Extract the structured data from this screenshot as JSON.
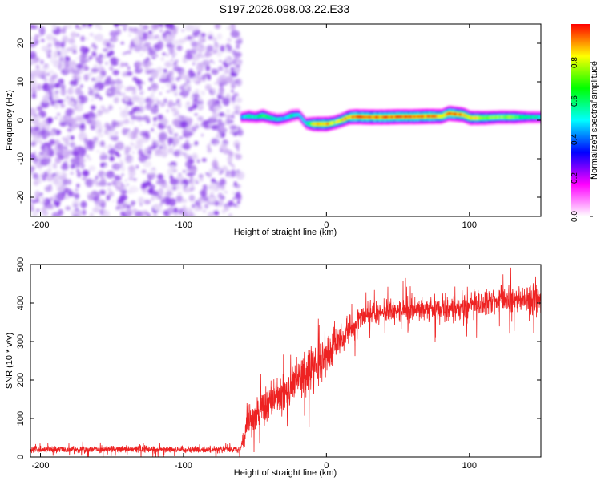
{
  "figure_title": "S197.2026.098.03.22.E33",
  "colorbar": {
    "label": "Normalized spectral amplitude",
    "ticks": [
      "0.0",
      "0.2",
      "0.4",
      "0.6",
      "0.8"
    ],
    "stops": [
      "#ffffff",
      "#ff00ff",
      "#0000ff",
      "#00ffff",
      "#00ff00",
      "#ffff00",
      "#ff0000"
    ]
  },
  "chart_data": [
    {
      "type": "heatmap",
      "title": "S197.2026.098.03.22.E33",
      "xlabel": "Height of straight line (km)",
      "ylabel": "Frequency (Hz)",
      "xlim": [
        -207,
        150
      ],
      "ylim": [
        -25,
        25
      ],
      "xticks": [
        -200,
        -100,
        0,
        100
      ],
      "xtick_labels": [
        "-200",
        "-100",
        "0",
        "100"
      ],
      "yticks": [
        -20,
        -10,
        0,
        10,
        20
      ],
      "ytick_labels": [
        "-20",
        "-10",
        "0",
        "10",
        "20"
      ],
      "zlabel": "Normalized spectral amplitude",
      "zlim": [
        0,
        1
      ],
      "noise_region": {
        "x_range": [
          -207,
          -60
        ],
        "amplitude_range": [
          0.0,
          0.12
        ]
      },
      "signal_track": {
        "x": [
          -60,
          -55,
          -50,
          -45,
          -40,
          -35,
          -30,
          -25,
          -20,
          -15,
          -10,
          -5,
          0,
          5,
          10,
          15,
          20,
          30,
          40,
          50,
          60,
          70,
          80,
          85,
          90,
          95,
          100,
          110,
          120,
          130,
          140,
          150
        ],
        "frequency": [
          0.8,
          1.0,
          0.8,
          1.2,
          0.6,
          0.2,
          0.5,
          1.2,
          1.5,
          -0.8,
          -1.0,
          -1.0,
          -1.0,
          -0.6,
          0.0,
          0.8,
          0.9,
          0.8,
          0.8,
          0.9,
          0.9,
          1.0,
          1.0,
          1.8,
          1.6,
          1.4,
          0.6,
          0.6,
          0.8,
          0.8,
          0.8,
          0.8
        ],
        "amplitude": [
          0.45,
          0.6,
          0.55,
          0.7,
          0.6,
          0.55,
          0.5,
          0.6,
          0.5,
          0.55,
          0.85,
          0.9,
          0.9,
          0.8,
          0.85,
          0.9,
          0.95,
          0.95,
          0.95,
          0.95,
          0.95,
          0.95,
          0.9,
          0.95,
          0.95,
          0.9,
          0.85,
          0.8,
          0.75,
          0.75,
          0.6,
          0.55
        ]
      }
    },
    {
      "type": "line",
      "xlabel": "Height of straight line (km)",
      "ylabel": "SNR (10 * v/v)",
      "xlim": [
        -207,
        150
      ],
      "ylim": [
        0,
        500
      ],
      "xticks": [
        -200,
        -100,
        0,
        100
      ],
      "xtick_labels": [
        "-200",
        "-100",
        "0",
        "100"
      ],
      "yticks": [
        0,
        100,
        200,
        300,
        400,
        500
      ],
      "ytick_labels": [
        "0",
        "100",
        "200",
        "300",
        "400",
        "500"
      ],
      "series": [
        {
          "name": "SNR",
          "color": "#ee2222",
          "x": [
            -207,
            -150,
            -100,
            -60,
            -55,
            -50,
            -45,
            -40,
            -35,
            -30,
            -25,
            -20,
            -15,
            -10,
            -5,
            0,
            5,
            10,
            15,
            20,
            25,
            30,
            40,
            50,
            60,
            70,
            80,
            90,
            100,
            110,
            120,
            130,
            140,
            150
          ],
          "y_mean": [
            20,
            20,
            20,
            20,
            90,
            110,
            125,
            140,
            155,
            170,
            185,
            200,
            215,
            230,
            245,
            265,
            285,
            305,
            325,
            345,
            358,
            368,
            376,
            382,
            385,
            385,
            385,
            385,
            395,
            400,
            405,
            405,
            410,
            410
          ],
          "y_spread": [
            8,
            8,
            8,
            8,
            40,
            40,
            40,
            45,
            45,
            45,
            50,
            55,
            55,
            55,
            50,
            45,
            40,
            35,
            35,
            32,
            32,
            30,
            28,
            28,
            28,
            28,
            30,
            30,
            30,
            32,
            32,
            35,
            40,
            40
          ]
        }
      ]
    }
  ]
}
